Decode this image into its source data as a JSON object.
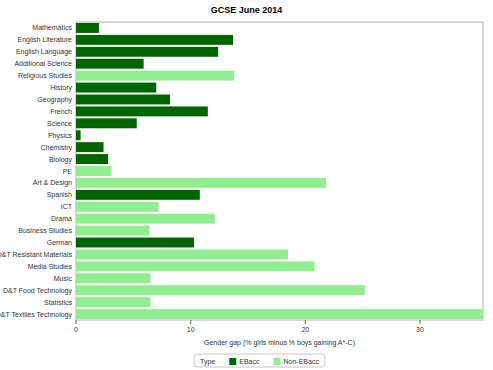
{
  "chart_data": {
    "type": "bar",
    "title": "GCSE June 2014",
    "orientation": "horizontal",
    "categories": [
      "Mathematics",
      "English Literature",
      "English Language",
      "Additional Science",
      "Religious Studies",
      "History",
      "Geography",
      "French",
      "Science",
      "Physics",
      "Chemistry",
      "Biology",
      "PE",
      "Art & Design",
      "Spanish",
      "ICT",
      "Drama",
      "Business Studies",
      "German",
      "D&T Resistant Materials",
      "Media Studies",
      "Music",
      "D&T Food Technology",
      "Statistics",
      "D&T Textiles Technology"
    ],
    "series": [
      {
        "name": "EBacc",
        "color": "#006400",
        "values": [
          2.0,
          13.7,
          12.4,
          5.9,
          null,
          7.0,
          8.2,
          11.5,
          5.3,
          0.4,
          2.4,
          2.8,
          null,
          null,
          10.8,
          null,
          null,
          null,
          10.3,
          null,
          null,
          null,
          null,
          null,
          null
        ]
      },
      {
        "name": "Non-EBacc",
        "color": "#90ee90",
        "values": [
          null,
          null,
          null,
          null,
          13.8,
          null,
          null,
          null,
          null,
          null,
          null,
          null,
          3.1,
          21.8,
          null,
          7.2,
          12.1,
          6.4,
          null,
          18.5,
          20.8,
          6.5,
          25.2,
          6.5,
          35.5
        ]
      }
    ],
    "x_label": "Gender gap (% girls minus % boys gaining A*-C)",
    "legend_title": "Type",
    "legend": "bottom",
    "xlim": [
      0,
      35.5
    ],
    "xticks": [
      0,
      10,
      20,
      30
    ],
    "grid": false
  }
}
